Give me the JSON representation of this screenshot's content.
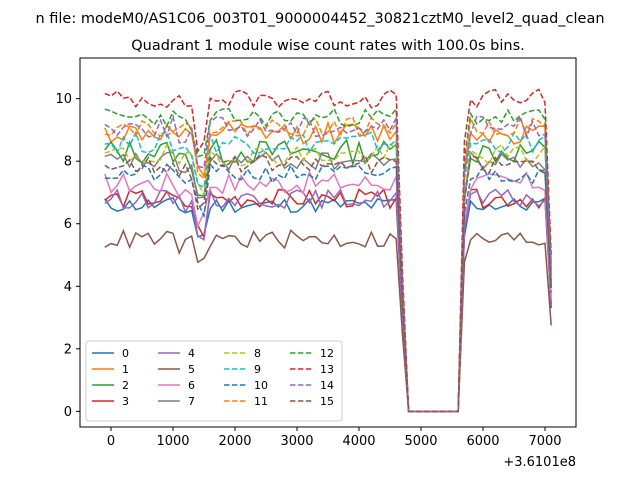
{
  "chart_data": {
    "type": "line",
    "suptitle": "n file: modeM0/AS1C06_003T01_9000004452_30821cztM0_level2_quad_clean",
    "title": "Quadrant 1 module wise count rates with 100.0s bins.",
    "xlabel": "",
    "ylabel": "",
    "x_offset_label": "+3.6101e8",
    "xlim": [
      -500,
      7500
    ],
    "ylim": [
      -0.5,
      11.3
    ],
    "xticks": [
      0,
      1000,
      2000,
      3000,
      4000,
      5000,
      6000,
      7000
    ],
    "yticks": [
      0,
      2,
      4,
      6,
      8,
      10
    ],
    "grid": false,
    "legend": {
      "location": "lower-left",
      "columns": 4
    },
    "series": [
      {
        "name": "0",
        "color": "#1f77b4",
        "dash": "solid",
        "base": 6.6,
        "noise": 0.25,
        "seed": 11
      },
      {
        "name": "1",
        "color": "#ff7f0e",
        "dash": "solid",
        "base": 8.9,
        "noise": 0.35,
        "seed": 12
      },
      {
        "name": "2",
        "color": "#2ca02c",
        "dash": "solid",
        "base": 8.3,
        "noise": 0.4,
        "seed": 13
      },
      {
        "name": "3",
        "color": "#d62728",
        "dash": "solid",
        "base": 6.8,
        "noise": 0.3,
        "seed": 14
      },
      {
        "name": "4",
        "color": "#9467bd",
        "dash": "solid",
        "base": 6.8,
        "noise": 0.3,
        "seed": 15
      },
      {
        "name": "5",
        "color": "#8c564b",
        "dash": "solid",
        "base": 5.5,
        "noise": 0.3,
        "seed": 16
      },
      {
        "name": "6",
        "color": "#e377c2",
        "dash": "solid",
        "base": 7.3,
        "noise": 0.35,
        "seed": 17
      },
      {
        "name": "7",
        "color": "#7f7f7f",
        "dash": "solid",
        "base": 8.0,
        "noise": 0.3,
        "seed": 18
      },
      {
        "name": "8",
        "color": "#bcbd22",
        "dash": "dashed",
        "base": 8.2,
        "noise": 0.35,
        "seed": 19
      },
      {
        "name": "9",
        "color": "#17becf",
        "dash": "dashed",
        "base": 8.6,
        "noise": 0.35,
        "seed": 20
      },
      {
        "name": "10",
        "color": "#1f77b4",
        "dash": "dashed",
        "base": 7.6,
        "noise": 0.3,
        "seed": 21
      },
      {
        "name": "11",
        "color": "#ff7f0e",
        "dash": "dashed",
        "base": 9.1,
        "noise": 0.3,
        "seed": 22
      },
      {
        "name": "12",
        "color": "#2ca02c",
        "dash": "dashed",
        "base": 9.4,
        "noise": 0.3,
        "seed": 23
      },
      {
        "name": "13",
        "color": "#d62728",
        "dash": "dashed",
        "base": 10.0,
        "noise": 0.3,
        "seed": 24
      },
      {
        "name": "14",
        "color": "#9467bd",
        "dash": "dashed",
        "base": 9.1,
        "noise": 0.35,
        "seed": 25
      },
      {
        "name": "15",
        "color": "#8c564b",
        "dash": "dashed",
        "base": 7.9,
        "noise": 0.3,
        "seed": 26
      }
    ]
  }
}
